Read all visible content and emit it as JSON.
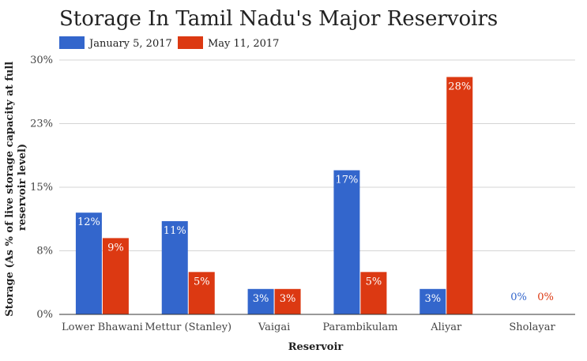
{
  "chart_data": {
    "type": "bar",
    "title": "Storage In Tamil Nadu's Major Reservoirs",
    "xlabel": "Reservoir",
    "ylabel_lines": [
      "Storage (As % of live storage capacity at full",
      "reservoir level)"
    ],
    "categories": [
      "Lower Bhawani",
      "Mettur (Stanley)",
      "Vaigai",
      "Parambikulam",
      "Aliyar",
      "Sholayar"
    ],
    "series": [
      {
        "name": "January 5, 2017",
        "color": "#3366cc",
        "values": [
          12,
          11,
          3,
          17,
          3,
          0
        ],
        "labels": [
          "12%",
          "11%",
          "3%",
          "17%",
          "3%",
          "0%"
        ]
      },
      {
        "name": "May 11, 2017",
        "color": "#dc3912",
        "values": [
          9,
          5,
          3,
          5,
          28,
          0
        ],
        "labels": [
          "9%",
          "5%",
          "3%",
          "5%",
          "28%",
          "0%"
        ]
      }
    ],
    "ylim": [
      0,
      30
    ],
    "yticks": [
      0,
      7.5,
      15,
      22.5,
      30
    ],
    "ytick_labels": [
      "0%",
      "8%",
      "15%",
      "23%",
      "30%"
    ],
    "grid": true,
    "legend_position": "top-left"
  }
}
